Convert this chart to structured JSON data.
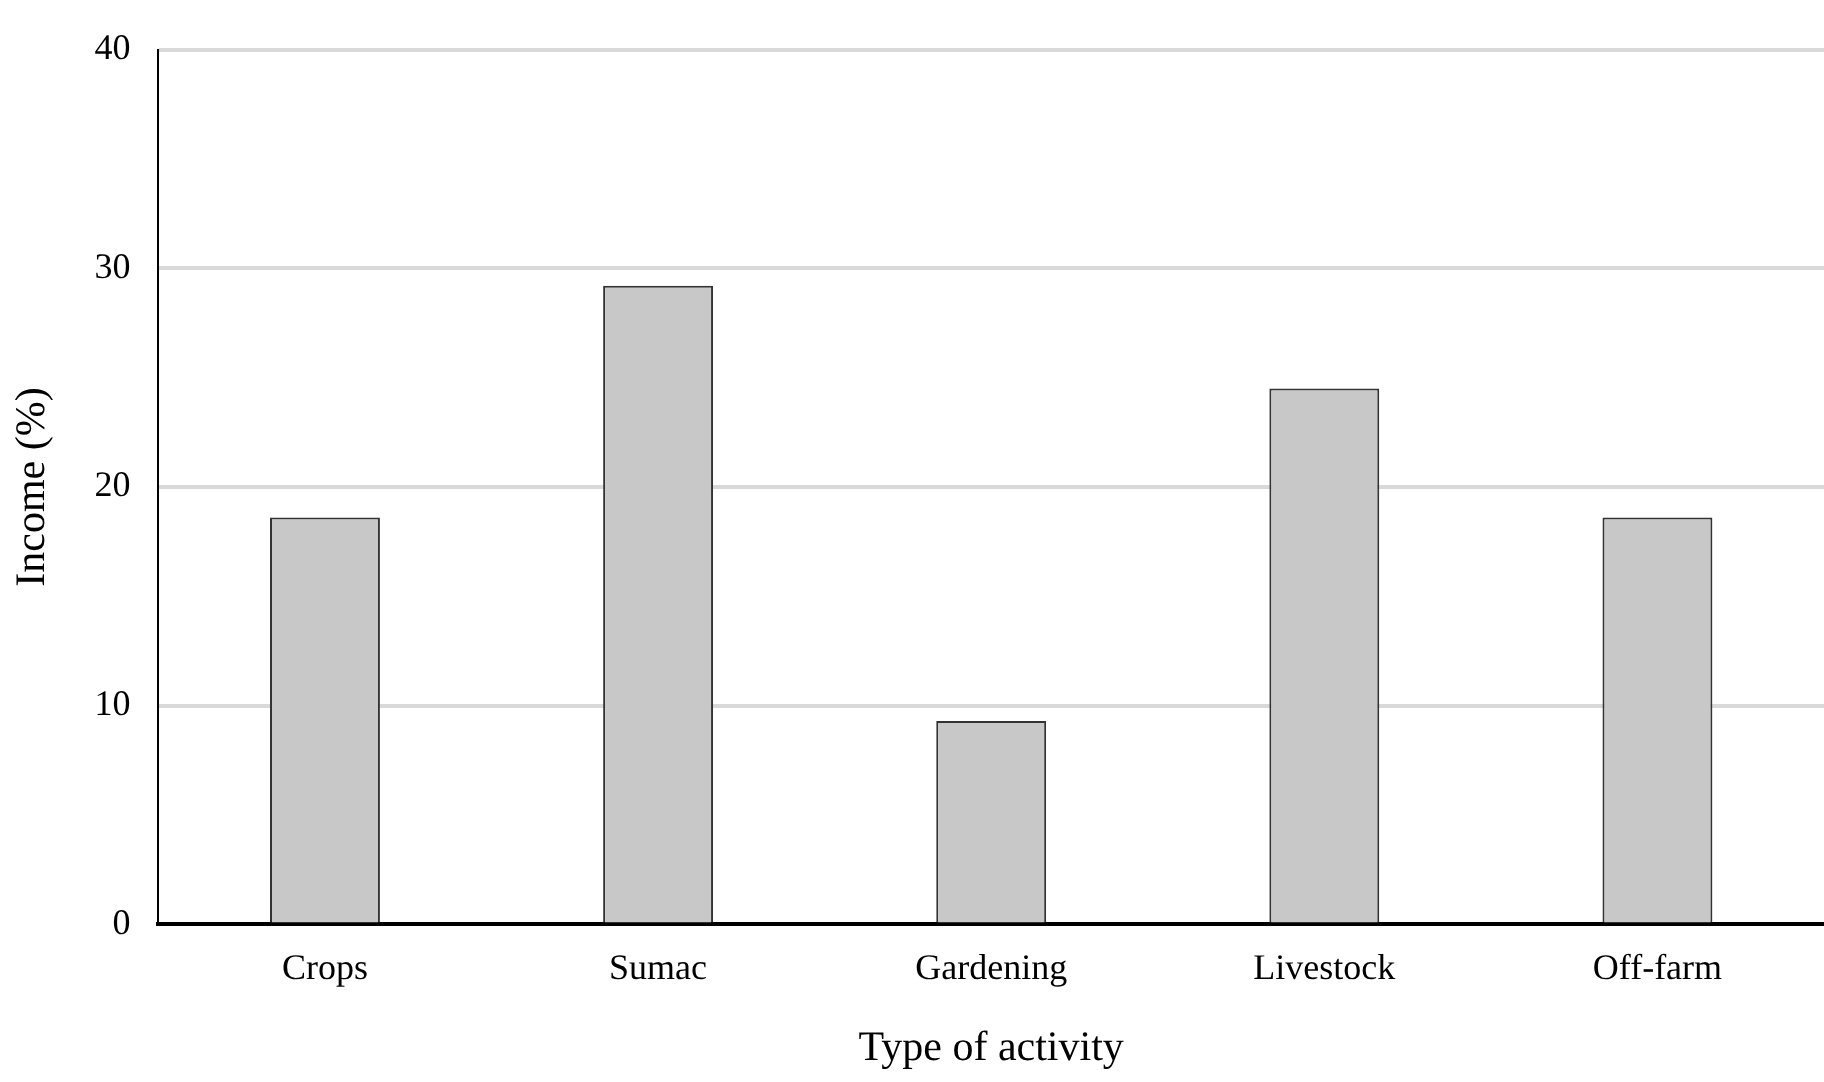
{
  "chart_data": {
    "type": "bar",
    "xlabel": "Type of activity",
    "ylabel": "Income (%)",
    "categories": [
      "Crops",
      "Sumac",
      "Gardening",
      "Livestock",
      "Off-farm"
    ],
    "values": [
      18.6,
      29.2,
      9.3,
      24.5,
      18.6
    ],
    "color": "#c8c8c8",
    "ylim": [
      0,
      40
    ],
    "yticks": [
      0,
      10,
      20,
      30,
      40
    ],
    "grid": "y"
  }
}
